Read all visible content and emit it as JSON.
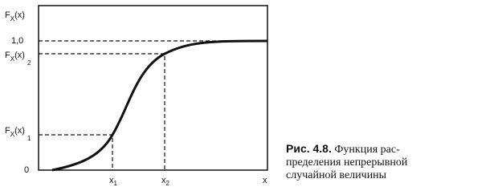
{
  "figure": {
    "y_axis": {
      "title": {
        "main": "F",
        "sub": "X",
        "arg": "(x)"
      },
      "labels": [
        {
          "text": "1,0"
        },
        {
          "main": "F",
          "sub": "X",
          "arg": "(x)",
          "index": "2"
        },
        {
          "main": "F",
          "sub": "X",
          "arg": "(x)",
          "index": "1"
        },
        {
          "text": "0"
        }
      ]
    },
    "x_axis": {
      "labels": [
        {
          "main": "x",
          "index": "1"
        },
        {
          "main": "x",
          "index": "2"
        },
        {
          "main": "x"
        }
      ]
    },
    "caption": {
      "label": "Рис. 4.8.",
      "lines": [
        "Функция рас-",
        "пределения непрерывной",
        "случайной величины"
      ]
    }
  }
}
